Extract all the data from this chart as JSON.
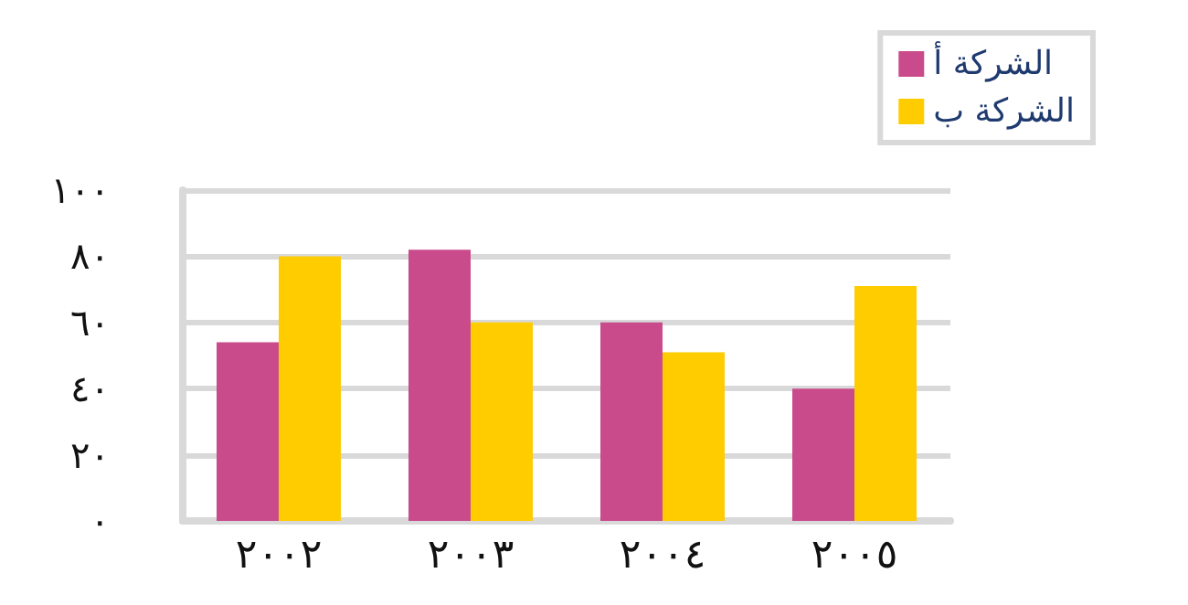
{
  "chart_data": {
    "type": "bar",
    "categories": [
      "٢٠٠٢",
      "٢٠٠٣",
      "٢٠٠٤",
      "٢٠٠٥"
    ],
    "series": [
      {
        "name": "الشركة أ",
        "color": "#c94b8c",
        "values": [
          54,
          82,
          60,
          40
        ]
      },
      {
        "name": "الشركة ب",
        "color": "#ffcc00",
        "values": [
          80,
          60,
          51,
          71
        ]
      }
    ],
    "ylim": [
      0,
      100
    ],
    "yticks": [
      {
        "value": 0,
        "label": "٠"
      },
      {
        "value": 20,
        "label": "٢٠"
      },
      {
        "value": 40,
        "label": "٤٠"
      },
      {
        "value": 60,
        "label": "٦٠"
      },
      {
        "value": 80,
        "label": "٨٠"
      },
      {
        "value": 100,
        "label": "١٠٠"
      }
    ],
    "grid": "y",
    "legend": "top right"
  }
}
